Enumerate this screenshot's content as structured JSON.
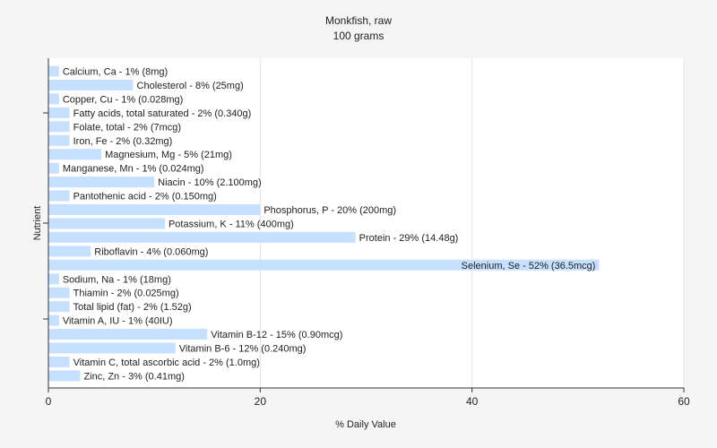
{
  "chart_data": {
    "type": "bar",
    "orientation": "horizontal",
    "title": "Monkfish, raw",
    "subtitle": "100 grams",
    "xlabel": "% Daily Value",
    "ylabel": "Nutrient",
    "xlim": [
      0,
      60
    ],
    "xticks": [
      "0",
      "20",
      "40",
      "60"
    ],
    "grid": "vertical",
    "bar_color": "#c6e0ff",
    "categories": [
      "Calcium, Ca - 1% (8mg)",
      "Cholesterol - 8% (25mg)",
      "Copper, Cu - 1% (0.028mg)",
      "Fatty acids, total saturated - 2% (0.340g)",
      "Folate, total - 2% (7mcg)",
      "Iron, Fe - 2% (0.32mg)",
      "Magnesium, Mg - 5% (21mg)",
      "Manganese, Mn - 1% (0.024mg)",
      "Niacin - 10% (2.100mg)",
      "Pantothenic acid - 2% (0.150mg)",
      "Phosphorus, P - 20% (200mg)",
      "Potassium, K - 11% (400mg)",
      "Protein - 29% (14.48g)",
      "Riboflavin - 4% (0.060mg)",
      "Selenium, Se - 52% (36.5mcg)",
      "Sodium, Na - 1% (18mg)",
      "Thiamin - 2% (0.025mg)",
      "Total lipid (fat) - 2% (1.52g)",
      "Vitamin A, IU - 1% (40IU)",
      "Vitamin B-12 - 15% (0.90mcg)",
      "Vitamin B-6 - 12% (0.240mg)",
      "Vitamin C, total ascorbic acid - 2% (1.0mg)",
      "Zinc, Zn - 3% (0.41mg)"
    ],
    "values": [
      1,
      8,
      1,
      2,
      2,
      2,
      5,
      1,
      10,
      2,
      20,
      11,
      29,
      4,
      52,
      1,
      2,
      2,
      1,
      15,
      12,
      2,
      3
    ]
  }
}
